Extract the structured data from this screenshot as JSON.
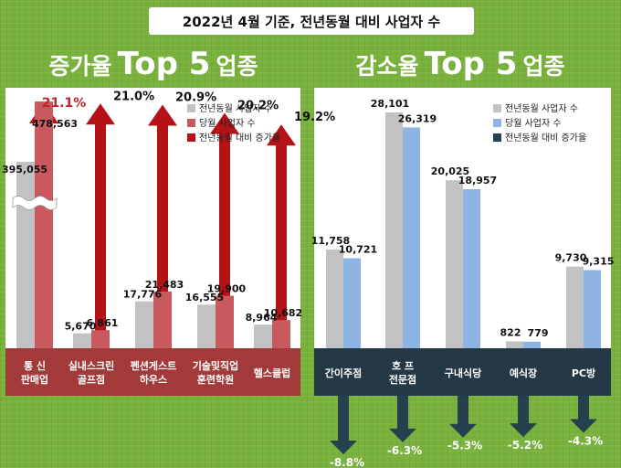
{
  "header": {
    "title": "2022년 4월 기준, 전년동월 대비 사업자 수"
  },
  "left_panel": {
    "title_pre": "증가율",
    "title_top": "Top 5",
    "title_post": "업종"
  },
  "right_panel": {
    "title_pre": "감소율",
    "title_top": "Top 5",
    "title_post": "업종"
  },
  "colors": {
    "prev_gray": "#c2c2c2",
    "cur_red": "#c8595e",
    "arrow_red": "#b51217",
    "cur_blue": "#8eb4e3",
    "arrow_navy": "#25404f",
    "label_band_left": "#a23a3a",
    "label_band_right": "#243846"
  },
  "chart_data": [
    {
      "type": "bar",
      "categories": [
        [
          "통  신",
          "판매업"
        ],
        [
          "실내스크린",
          "골프점"
        ],
        [
          "펜션게스트",
          "하우스"
        ],
        [
          "기술및직업",
          "훈련학원"
        ],
        [
          "헬스클럽"
        ]
      ],
      "series": [
        {
          "name": "전년동월 사업자 수",
          "values": [
            395055,
            5670,
            17776,
            16555,
            8964
          ],
          "labels": [
            "395,055",
            "5,670",
            "17,776",
            "16,555",
            "8,964"
          ]
        },
        {
          "name": "당월 사업자 수",
          "values": [
            478563,
            6861,
            21483,
            19900,
            10682
          ],
          "labels": [
            "478,563",
            "6,861",
            "21,483",
            "19,900",
            "10,682"
          ]
        },
        {
          "name": "전년동월 대비 증가율",
          "values": [
            21.1,
            21.0,
            20.9,
            20.2,
            19.2
          ],
          "labels": [
            "21.1%",
            "21.0%",
            "20.9%",
            "20.2%",
            "19.2%"
          ]
        }
      ],
      "axis_break": true,
      "legend_position": "top-right"
    },
    {
      "type": "bar",
      "categories": [
        [
          "간이주점"
        ],
        [
          "호  프",
          "전문점"
        ],
        [
          "구내식당"
        ],
        [
          "예식장"
        ],
        [
          "PC방"
        ]
      ],
      "series": [
        {
          "name": "전년동월 사업자 수",
          "values": [
            11758,
            28101,
            20025,
            822,
            9730
          ],
          "labels": [
            "11,758",
            "28,101",
            "20,025",
            "822",
            "9,730"
          ]
        },
        {
          "name": "당월 사업자 수",
          "values": [
            10721,
            26319,
            18957,
            779,
            9315
          ],
          "labels": [
            "10,721",
            "26,319",
            "18,957",
            "779",
            "9,315"
          ]
        },
        {
          "name": "전년동월 대비 증가율",
          "values": [
            -8.8,
            -6.3,
            -5.3,
            -5.2,
            -4.3
          ],
          "labels": [
            "-8.8%",
            "-6.3%",
            "-5.3%",
            "-5.2%",
            "-4.3%"
          ]
        }
      ],
      "ylim": [
        0,
        28101
      ],
      "legend_position": "top-right"
    }
  ]
}
